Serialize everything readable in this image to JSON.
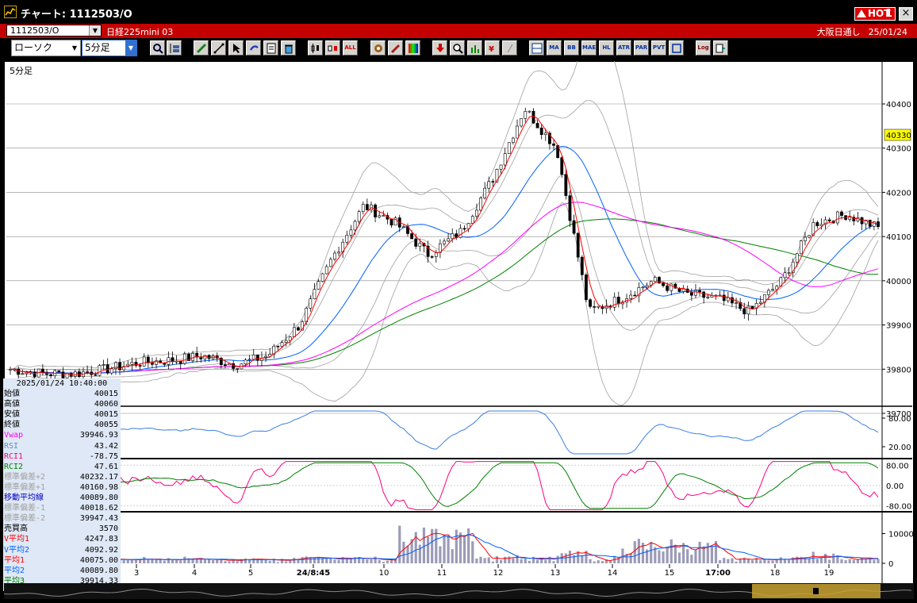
{
  "window": {
    "title": "チャート: 1112503/O",
    "hot_label": "HOT",
    "hot_number": "1",
    "close_label": "×"
  },
  "header": {
    "symbol_code": "1112503/O",
    "symbol_name": "日経225mini 03",
    "market": "大阪日通し",
    "date": "25/01/24"
  },
  "toolbar": {
    "chart_type": "ローソク",
    "period": "5分足",
    "text_buttons": [
      "ALL",
      "MA",
      "BB",
      "MAE",
      "HL",
      "ATR",
      "PAR",
      "PVT",
      "Log"
    ]
  },
  "chart": {
    "period_label": "5分足",
    "price_ticks": [
      "40400",
      "40300",
      "40200",
      "40100",
      "40000",
      "39900",
      "39800",
      "39700"
    ],
    "current_price": "40330",
    "rsi_ticks": [
      "80.00",
      "20.00"
    ],
    "rci_ticks": [
      "80.00",
      "0.00",
      "-80.00"
    ],
    "volume_ticks": [
      "10000",
      "0"
    ],
    "x_labels": [
      "3",
      "4",
      "5",
      "24/8:45",
      "10",
      "11",
      "12",
      "13",
      "14",
      "15",
      "17:00",
      "18",
      "19"
    ],
    "colors": {
      "up": "#ffffff",
      "down": "#000000",
      "ma_short": "#ff0000",
      "ma_mid": "#0060ff",
      "ma_long": "#008000",
      "vwap": "#ff00ff",
      "bband": "#a0a0a0",
      "rsi": "#3a7fe0",
      "rci1": "#ff0080",
      "rci2": "#008000",
      "volume": "#9b9bb8",
      "vol_ma1": "#ff0000",
      "vol_ma2": "#0060ff"
    }
  },
  "info_panel": {
    "datetime": "2025/01/24  10:40:00",
    "rows": [
      {
        "label": "始値",
        "value": "40015",
        "color": "#000000"
      },
      {
        "label": "高値",
        "value": "40060",
        "color": "#000000"
      },
      {
        "label": "安値",
        "value": "40015",
        "color": "#000000"
      },
      {
        "label": "終値",
        "value": "40055",
        "color": "#000000"
      },
      {
        "label": "Vwap",
        "value": "39946.93",
        "color": "#ff00ff"
      },
      {
        "label": "RSI",
        "value": "43.42",
        "color": "#6090d0"
      },
      {
        "label": "RCI1",
        "value": "-78.75",
        "color": "#ff0080"
      },
      {
        "label": "RCI2",
        "value": "47.61",
        "color": "#008000"
      },
      {
        "label": "標準偏差+2",
        "value": "40232.17",
        "color": "#a0a0a0"
      },
      {
        "label": "標準偏差+1",
        "value": "40160.98",
        "color": "#a0a0a0"
      },
      {
        "label": "移動平均線",
        "value": "40089.80",
        "color": "#0000c0"
      },
      {
        "label": "標準偏差-1",
        "value": "40018.62",
        "color": "#a0a0a0"
      },
      {
        "label": "標準偏差-2",
        "value": "39947.43",
        "color": "#a0a0a0"
      },
      {
        "label": "売買高",
        "value": "3570",
        "color": "#000000"
      },
      {
        "label": "V平均1",
        "value": "4247.83",
        "color": "#ff0000"
      },
      {
        "label": "V平均2",
        "value": "4092.92",
        "color": "#0060ff"
      },
      {
        "label": "平均1",
        "value": "40075.00",
        "color": "#ff0000"
      },
      {
        "label": "平均2",
        "value": "40089.80",
        "color": "#0060ff"
      },
      {
        "label": "平均3",
        "value": "39914.33",
        "color": "#008000"
      }
    ]
  },
  "chart_data": {
    "type": "candlestick",
    "price_axis": {
      "min": 39700,
      "max": 40400,
      "ticks": [
        39700,
        39800,
        39900,
        40000,
        40100,
        40200,
        40300,
        40400
      ]
    },
    "rsi_axis": {
      "ticks": [
        20,
        80
      ]
    },
    "rci_axis": {
      "ticks": [
        -80,
        0,
        80
      ]
    },
    "volume_axis": {
      "ticks": [
        0,
        10000
      ]
    },
    "x_labels": [
      "3",
      "4",
      "5",
      "24/8:45",
      "10",
      "11",
      "12",
      "13",
      "14",
      "15",
      "17:00",
      "18",
      "19"
    ],
    "price_path_anchors": [
      39800,
      39790,
      39790,
      39800,
      39815,
      39820,
      39830,
      39810,
      39830,
      39900,
      40050,
      40170,
      40130,
      40060,
      40110,
      40230,
      40390,
      40300,
      39930,
      39960,
      40000,
      39970,
      39960,
      39930,
      40000,
      40130,
      40150,
      40120
    ],
    "last_bar": {
      "open": 40015,
      "high": 40060,
      "low": 40015,
      "close": 40055
    }
  }
}
